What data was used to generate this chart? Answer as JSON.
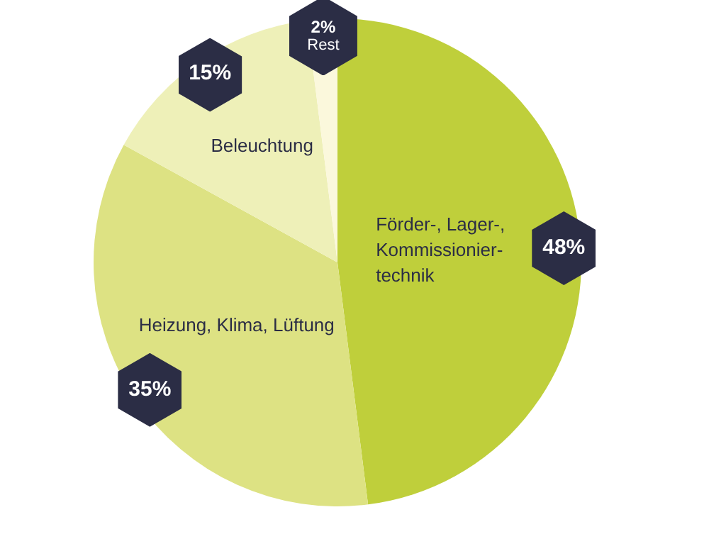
{
  "chart_data": {
    "type": "pie",
    "categories": [
      "Förder-, Lager-, Kommissionier-technik",
      "Heizung, Klima, Lüftung",
      "Beleuchtung",
      "Rest"
    ],
    "values": [
      48,
      35,
      15,
      2
    ],
    "colors": [
      "#bfcf3b",
      "#dde283",
      "#eef0b8",
      "#fbf8dc"
    ],
    "value_labels": [
      "48%",
      "35%",
      "15%",
      "2%"
    ]
  }
}
